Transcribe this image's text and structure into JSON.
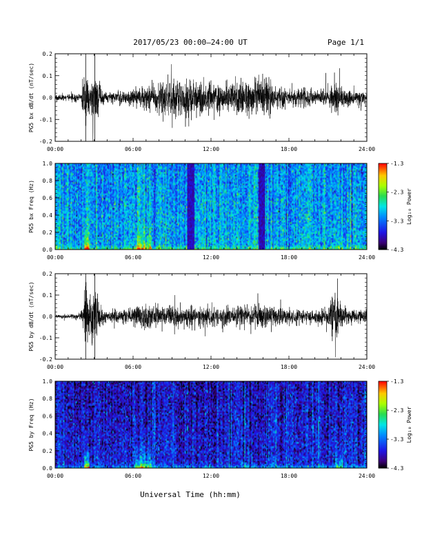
{
  "header": {
    "title": "2017/05/23  00:00–24:00 UT",
    "page_label": "Page 1/1"
  },
  "footer": {
    "xlabel": "Universal Time (hh:mm)"
  },
  "chart_data": [
    {
      "type": "line",
      "title": "",
      "ylabel": "PG5 bx dB/dt (nT/sec)",
      "xlim_hours": [
        0,
        24
      ],
      "ylim": [
        -0.2,
        0.2
      ],
      "x_tick_labels": [
        "00:00",
        "06:00",
        "12:00",
        "18:00",
        "24:00"
      ],
      "y_tick_labels": [
        "0.2",
        "0.1",
        "0.0",
        "-0.1",
        "-0.2"
      ],
      "y_tick_values": [
        0.2,
        0.1,
        0.0,
        -0.1,
        -0.2
      ],
      "grid": false,
      "envelope": {
        "x_hours": [
          0.0,
          1.0,
          2.0,
          2.4,
          2.6,
          3.0,
          3.5,
          4.0,
          5.0,
          6.0,
          7.0,
          8.0,
          9.0,
          10.0,
          11.0,
          12.0,
          13.0,
          14.0,
          15.0,
          16.0,
          17.0,
          18.0,
          19.0,
          20.0,
          21.0,
          21.7,
          22.0,
          22.5,
          23.0,
          24.0
        ],
        "amplitude": [
          0.02,
          0.02,
          0.03,
          0.2,
          0.1,
          0.2,
          0.06,
          0.03,
          0.04,
          0.05,
          0.07,
          0.09,
          0.11,
          0.11,
          0.1,
          0.09,
          0.08,
          0.09,
          0.1,
          0.12,
          0.07,
          0.05,
          0.05,
          0.04,
          0.05,
          0.13,
          0.07,
          0.05,
          0.04,
          0.04
        ]
      }
    },
    {
      "type": "heatmap",
      "title": "",
      "ylabel": "PG5 bx Freq (Hz)",
      "xlim_hours": [
        0,
        24
      ],
      "ylim": [
        0.0,
        1.0
      ],
      "x_tick_labels": [
        "00:00",
        "06:00",
        "12:00",
        "18:00",
        "24:00"
      ],
      "y_tick_labels": [
        "1.0",
        "0.8",
        "0.6",
        "0.4",
        "0.2",
        "0.0"
      ],
      "y_tick_values": [
        1.0,
        0.8,
        0.6,
        0.4,
        0.2,
        0.0
      ],
      "colorbar": {
        "label": "Log₁₀ Power",
        "range": [
          -4.3,
          -1.3
        ],
        "tick_labels": [
          "-1.3",
          "-2.3",
          "-3.3",
          "-4.3"
        ],
        "tick_values": [
          -1.3,
          -2.3,
          -3.3,
          -4.3
        ]
      },
      "background_level": -3.0,
      "data_gaps_hours": [
        [
          10.2,
          10.7
        ],
        [
          15.7,
          16.2
        ]
      ],
      "low_freq_enhancements": [
        {
          "x_hours": [
            2.2,
            2.6
          ],
          "max_log_power": -1.4
        },
        {
          "x_hours": [
            6.2,
            7.4
          ],
          "max_log_power": -2.0
        },
        {
          "x_hours": [
            21.6,
            22.2
          ],
          "max_log_power": -2.6
        }
      ]
    },
    {
      "type": "line",
      "title": "",
      "ylabel": "PG5 by dB/dt (nT/sec)",
      "xlim_hours": [
        0,
        24
      ],
      "ylim": [
        -0.2,
        0.2
      ],
      "x_tick_labels": [
        "00:00",
        "06:00",
        "12:00",
        "18:00",
        "24:00"
      ],
      "y_tick_labels": [
        "0.2",
        "0.1",
        "0.0",
        "-0.1",
        "-0.2"
      ],
      "y_tick_values": [
        0.2,
        0.1,
        0.0,
        -0.1,
        -0.2
      ],
      "grid": false,
      "envelope": {
        "x_hours": [
          0.0,
          1.0,
          2.0,
          2.4,
          2.6,
          3.0,
          3.5,
          4.0,
          5.0,
          6.0,
          7.0,
          8.0,
          9.0,
          10.0,
          11.0,
          12.0,
          13.0,
          14.0,
          15.0,
          16.0,
          17.0,
          18.0,
          19.0,
          20.0,
          21.0,
          21.7,
          22.0,
          22.5,
          23.0,
          24.0
        ],
        "amplitude": [
          0.01,
          0.01,
          0.03,
          0.2,
          0.12,
          0.2,
          0.06,
          0.03,
          0.04,
          0.05,
          0.08,
          0.06,
          0.06,
          0.06,
          0.06,
          0.06,
          0.05,
          0.06,
          0.07,
          0.06,
          0.05,
          0.04,
          0.04,
          0.04,
          0.05,
          0.2,
          0.07,
          0.05,
          0.04,
          0.04
        ]
      }
    },
    {
      "type": "heatmap",
      "title": "",
      "ylabel": "PG5 by Freq (Hz)",
      "xlim_hours": [
        0,
        24
      ],
      "ylim": [
        0.0,
        1.0
      ],
      "x_tick_labels": [
        "00:00",
        "06:00",
        "12:00",
        "18:00",
        "24:00"
      ],
      "y_tick_labels": [
        "1.0",
        "0.8",
        "0.6",
        "0.4",
        "0.2",
        "0.0"
      ],
      "y_tick_values": [
        1.0,
        0.8,
        0.6,
        0.4,
        0.2,
        0.0
      ],
      "colorbar": {
        "label": "Log₁₀ Power",
        "range": [
          -4.3,
          -1.3
        ],
        "tick_labels": [
          "-1.3",
          "-2.3",
          "-3.3",
          "-4.3"
        ],
        "tick_values": [
          -1.3,
          -2.3,
          -3.3,
          -4.3
        ]
      },
      "background_level": -3.65,
      "data_gaps_hours": [],
      "low_freq_enhancements": [
        {
          "x_hours": [
            2.2,
            2.6
          ],
          "max_log_power": -1.5
        },
        {
          "x_hours": [
            6.2,
            7.4
          ],
          "max_log_power": -2.0
        },
        {
          "x_hours": [
            21.6,
            22.2
          ],
          "max_log_power": -2.5
        }
      ]
    }
  ]
}
